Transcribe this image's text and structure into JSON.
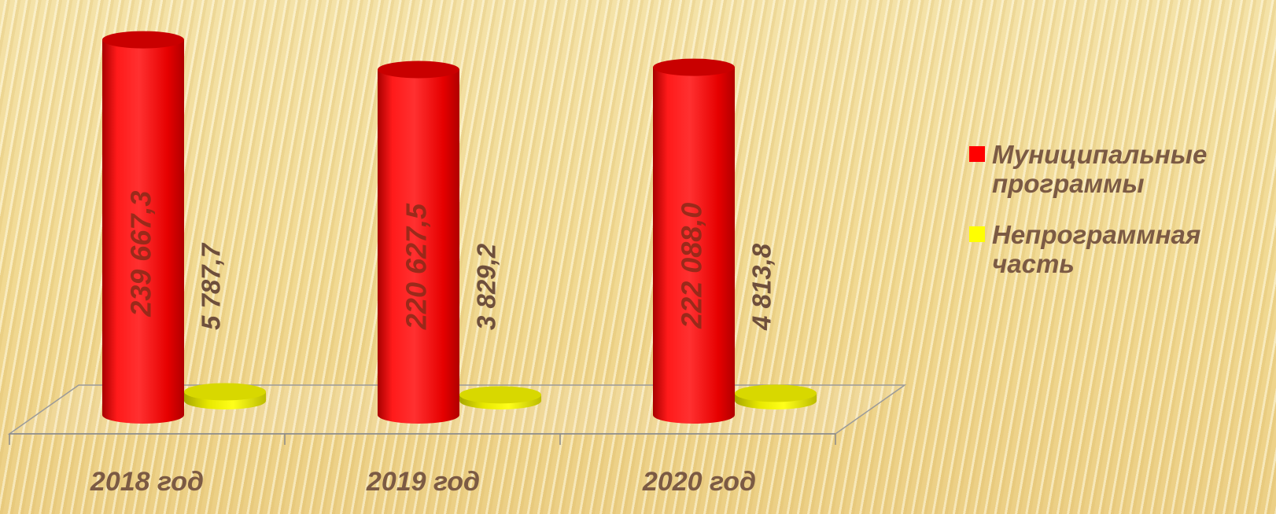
{
  "chart_data": {
    "type": "bar",
    "categories": [
      "2018 год",
      "2019 год",
      "2020 год"
    ],
    "series": [
      {
        "name": "Муниципальные программы",
        "color": "#ff0000",
        "values": [
          239667.3,
          220627.5,
          222088.0
        ],
        "labels": [
          "239 667,3",
          "220 627,5",
          "222 088,0"
        ]
      },
      {
        "name": "Непрограммная часть",
        "color": "#ffff00",
        "values": [
          5787.7,
          3829.2,
          4813.8
        ],
        "labels": [
          "5 787,7",
          "3 829,2",
          "4 813,8"
        ]
      }
    ],
    "legend_position": "right",
    "style": "3d-cylinder",
    "grid": false,
    "ylim": [
      0,
      250000
    ]
  },
  "legend": {
    "items": [
      {
        "label": "Муниципальные программы",
        "color": "#ff0000"
      },
      {
        "label": "Непрограммная часть",
        "color": "#ffff00"
      }
    ]
  }
}
